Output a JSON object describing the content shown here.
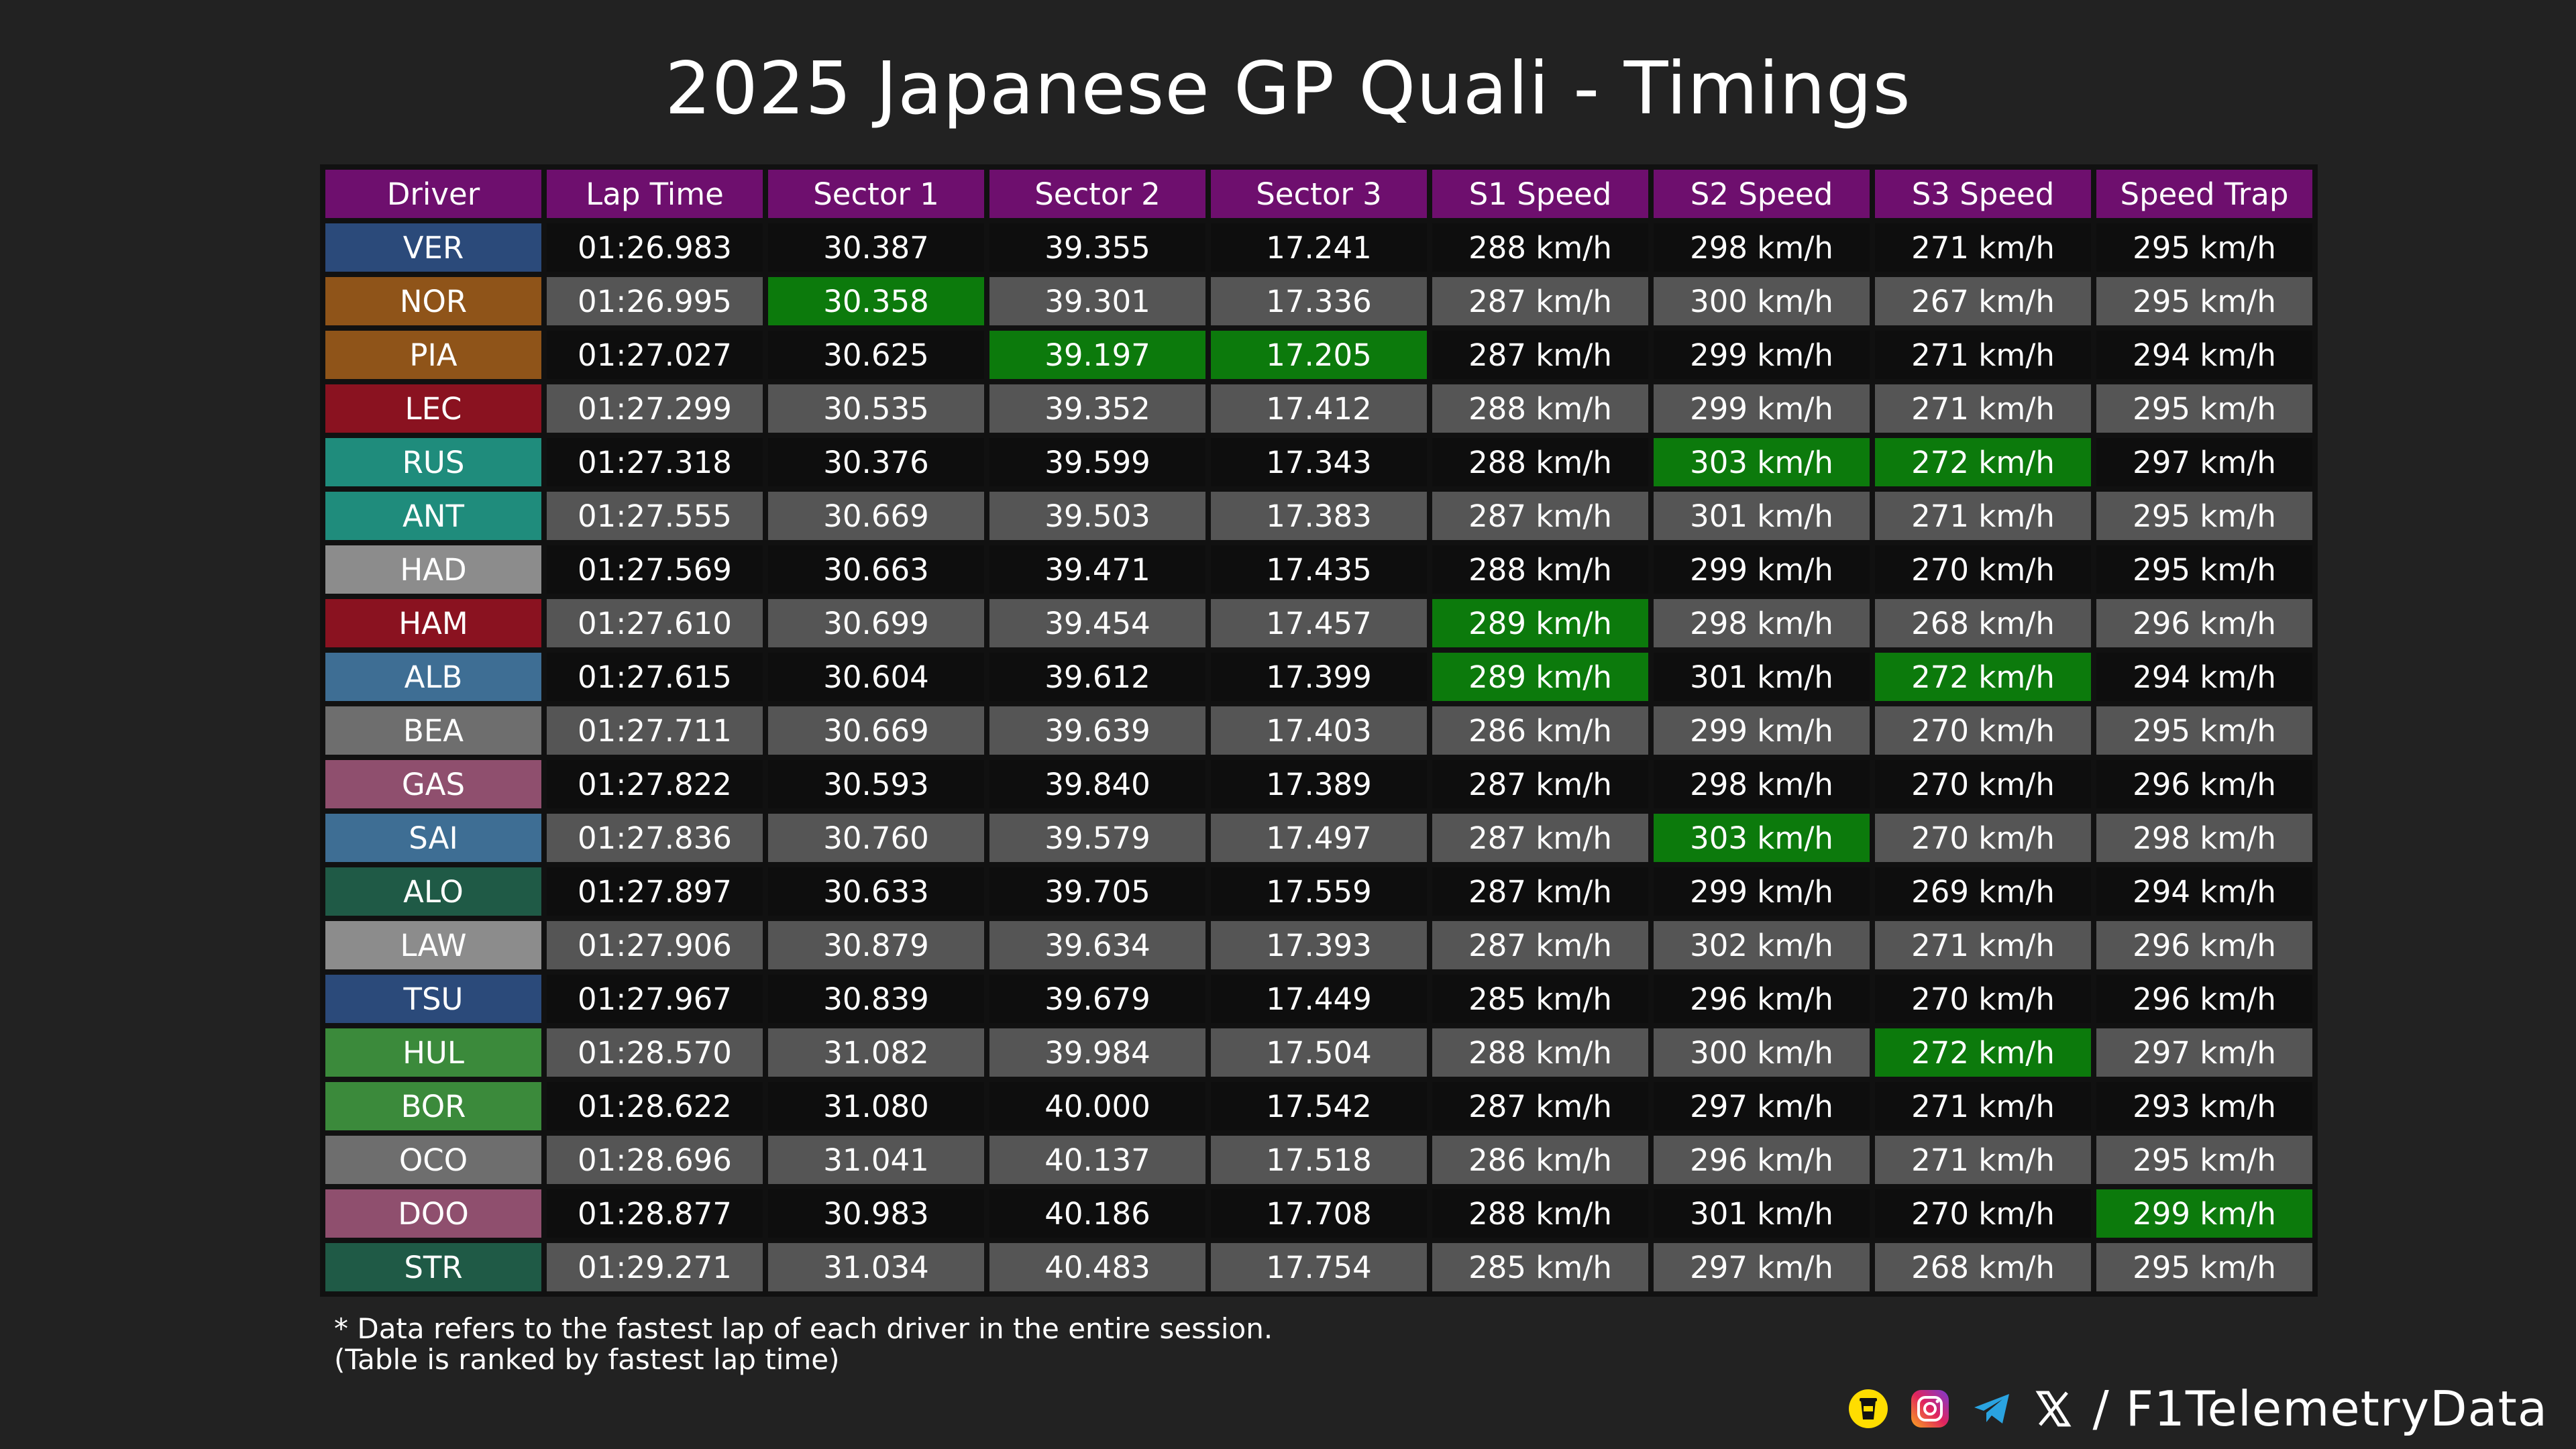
{
  "title": "2025 Japanese GP Quali - Timings",
  "watermark": "@F1TelemetryData",
  "columns": [
    "Driver",
    "Lap Time",
    "Sector 1",
    "Sector 2",
    "Sector 3",
    "S1 Speed",
    "S2 Speed",
    "S3 Speed",
    "Speed Trap"
  ],
  "highlight_color": "#0c7a0c",
  "header_color": "#6e0f6e",
  "rows": [
    {
      "driver": "VER",
      "team_color": "#2b4a7a",
      "lap_time": "01:26.983",
      "s1": "30.387",
      "s2": "39.355",
      "s3": "17.241",
      "s1_speed": "288 km/h",
      "s2_speed": "298 km/h",
      "s3_speed": "271 km/h",
      "speed_trap": "295 km/h",
      "best": []
    },
    {
      "driver": "NOR",
      "team_color": "#8f5419",
      "lap_time": "01:26.995",
      "s1": "30.358",
      "s2": "39.301",
      "s3": "17.336",
      "s1_speed": "287 km/h",
      "s2_speed": "300 km/h",
      "s3_speed": "267 km/h",
      "speed_trap": "295 km/h",
      "best": [
        "s1"
      ]
    },
    {
      "driver": "PIA",
      "team_color": "#8f5419",
      "lap_time": "01:27.027",
      "s1": "30.625",
      "s2": "39.197",
      "s3": "17.205",
      "s1_speed": "287 km/h",
      "s2_speed": "299 km/h",
      "s3_speed": "271 km/h",
      "speed_trap": "294 km/h",
      "best": [
        "s2",
        "s3"
      ]
    },
    {
      "driver": "LEC",
      "team_color": "#8a1220",
      "lap_time": "01:27.299",
      "s1": "30.535",
      "s2": "39.352",
      "s3": "17.412",
      "s1_speed": "288 km/h",
      "s2_speed": "299 km/h",
      "s3_speed": "271 km/h",
      "speed_trap": "295 km/h",
      "best": []
    },
    {
      "driver": "RUS",
      "team_color": "#1f8c7c",
      "lap_time": "01:27.318",
      "s1": "30.376",
      "s2": "39.599",
      "s3": "17.343",
      "s1_speed": "288 km/h",
      "s2_speed": "303 km/h",
      "s3_speed": "272 km/h",
      "speed_trap": "297 km/h",
      "best": [
        "s2_speed",
        "s3_speed"
      ]
    },
    {
      "driver": "ANT",
      "team_color": "#1f8c7c",
      "lap_time": "01:27.555",
      "s1": "30.669",
      "s2": "39.503",
      "s3": "17.383",
      "s1_speed": "287 km/h",
      "s2_speed": "301 km/h",
      "s3_speed": "271 km/h",
      "speed_trap": "295 km/h",
      "best": []
    },
    {
      "driver": "HAD",
      "team_color": "#8c8c8c",
      "lap_time": "01:27.569",
      "s1": "30.663",
      "s2": "39.471",
      "s3": "17.435",
      "s1_speed": "288 km/h",
      "s2_speed": "299 km/h",
      "s3_speed": "270 km/h",
      "speed_trap": "295 km/h",
      "best": []
    },
    {
      "driver": "HAM",
      "team_color": "#8a1220",
      "lap_time": "01:27.610",
      "s1": "30.699",
      "s2": "39.454",
      "s3": "17.457",
      "s1_speed": "289 km/h",
      "s2_speed": "298 km/h",
      "s3_speed": "268 km/h",
      "speed_trap": "296 km/h",
      "best": [
        "s1_speed"
      ]
    },
    {
      "driver": "ALB",
      "team_color": "#3e6e94",
      "lap_time": "01:27.615",
      "s1": "30.604",
      "s2": "39.612",
      "s3": "17.399",
      "s1_speed": "289 km/h",
      "s2_speed": "301 km/h",
      "s3_speed": "272 km/h",
      "speed_trap": "294 km/h",
      "best": [
        "s1_speed",
        "s3_speed"
      ]
    },
    {
      "driver": "BEA",
      "team_color": "#6e6e6e",
      "lap_time": "01:27.711",
      "s1": "30.669",
      "s2": "39.639",
      "s3": "17.403",
      "s1_speed": "286 km/h",
      "s2_speed": "299 km/h",
      "s3_speed": "270 km/h",
      "speed_trap": "295 km/h",
      "best": []
    },
    {
      "driver": "GAS",
      "team_color": "#8f4f6e",
      "lap_time": "01:27.822",
      "s1": "30.593",
      "s2": "39.840",
      "s3": "17.389",
      "s1_speed": "287 km/h",
      "s2_speed": "298 km/h",
      "s3_speed": "270 km/h",
      "speed_trap": "296 km/h",
      "best": []
    },
    {
      "driver": "SAI",
      "team_color": "#3e6e94",
      "lap_time": "01:27.836",
      "s1": "30.760",
      "s2": "39.579",
      "s3": "17.497",
      "s1_speed": "287 km/h",
      "s2_speed": "303 km/h",
      "s3_speed": "270 km/h",
      "speed_trap": "298 km/h",
      "best": [
        "s2_speed"
      ]
    },
    {
      "driver": "ALO",
      "team_color": "#1f5a46",
      "lap_time": "01:27.897",
      "s1": "30.633",
      "s2": "39.705",
      "s3": "17.559",
      "s1_speed": "287 km/h",
      "s2_speed": "299 km/h",
      "s3_speed": "269 km/h",
      "speed_trap": "294 km/h",
      "best": []
    },
    {
      "driver": "LAW",
      "team_color": "#8c8c8c",
      "lap_time": "01:27.906",
      "s1": "30.879",
      "s2": "39.634",
      "s3": "17.393",
      "s1_speed": "287 km/h",
      "s2_speed": "302 km/h",
      "s3_speed": "271 km/h",
      "speed_trap": "296 km/h",
      "best": []
    },
    {
      "driver": "TSU",
      "team_color": "#2b4a7a",
      "lap_time": "01:27.967",
      "s1": "30.839",
      "s2": "39.679",
      "s3": "17.449",
      "s1_speed": "285 km/h",
      "s2_speed": "296 km/h",
      "s3_speed": "270 km/h",
      "speed_trap": "296 km/h",
      "best": []
    },
    {
      "driver": "HUL",
      "team_color": "#3b8a3b",
      "lap_time": "01:28.570",
      "s1": "31.082",
      "s2": "39.984",
      "s3": "17.504",
      "s1_speed": "288 km/h",
      "s2_speed": "300 km/h",
      "s3_speed": "272 km/h",
      "speed_trap": "297 km/h",
      "best": [
        "s3_speed"
      ]
    },
    {
      "driver": "BOR",
      "team_color": "#3b8a3b",
      "lap_time": "01:28.622",
      "s1": "31.080",
      "s2": "40.000",
      "s3": "17.542",
      "s1_speed": "287 km/h",
      "s2_speed": "297 km/h",
      "s3_speed": "271 km/h",
      "speed_trap": "293 km/h",
      "best": []
    },
    {
      "driver": "OCO",
      "team_color": "#6e6e6e",
      "lap_time": "01:28.696",
      "s1": "31.041",
      "s2": "40.137",
      "s3": "17.518",
      "s1_speed": "286 km/h",
      "s2_speed": "296 km/h",
      "s3_speed": "271 km/h",
      "speed_trap": "295 km/h",
      "best": []
    },
    {
      "driver": "DOO",
      "team_color": "#8f4f6e",
      "lap_time": "01:28.877",
      "s1": "30.983",
      "s2": "40.186",
      "s3": "17.708",
      "s1_speed": "288 km/h",
      "s2_speed": "301 km/h",
      "s3_speed": "270 km/h",
      "speed_trap": "299 km/h",
      "best": [
        "speed_trap"
      ]
    },
    {
      "driver": "STR",
      "team_color": "#1f5a46",
      "lap_time": "01:29.271",
      "s1": "31.034",
      "s2": "40.483",
      "s3": "17.754",
      "s1_speed": "285 km/h",
      "s2_speed": "297 km/h",
      "s3_speed": "268 km/h",
      "speed_trap": "295 km/h",
      "best": []
    }
  ],
  "footnote": {
    "line1": "* Data refers to the fastest lap of each driver in the entire session.",
    "line2": "(Table is ranked by fastest lap time)"
  },
  "socials": {
    "icons": [
      "buymeacoffee-icon",
      "instagram-icon",
      "telegram-icon",
      "x-icon"
    ],
    "handle": "/ F1TelemetryData"
  }
}
